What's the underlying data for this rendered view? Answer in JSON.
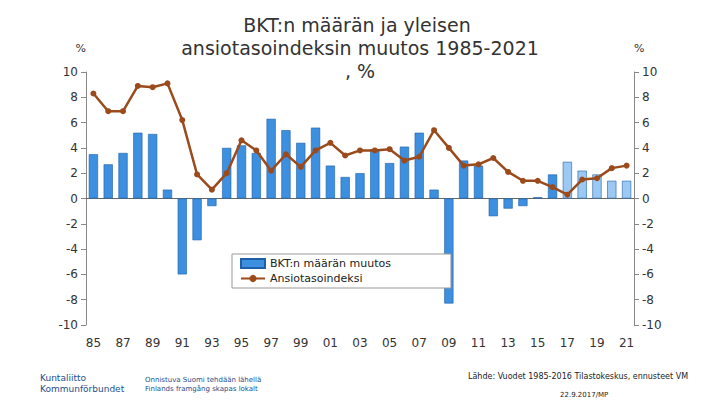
{
  "chart_data": {
    "type": "bar",
    "title": "BKT:n määrän ja yleisen ansiotasoindeksin muutos 1985-2021, %",
    "ylabel": "%",
    "y2label": "%",
    "categories": [
      "85",
      null,
      "87",
      null,
      "89",
      null,
      "91",
      null,
      "93",
      null,
      "95",
      null,
      "97",
      null,
      "99",
      null,
      "01",
      null,
      "03",
      null,
      "05",
      null,
      "07",
      null,
      "09",
      null,
      "11",
      null,
      "13",
      null,
      "15",
      null,
      "17",
      null,
      "19",
      null,
      "21"
    ],
    "series": [
      {
        "name": "BKT:n määrän muutos",
        "type": "bar",
        "colors": [
          "#3d8fe0",
          "#3d8fe0",
          "#3d8fe0",
          "#3d8fe0",
          "#3d8fe0",
          "#3d8fe0",
          "#3d8fe0",
          "#3d8fe0",
          "#3d8fe0",
          "#3d8fe0",
          "#3d8fe0",
          "#3d8fe0",
          "#3d8fe0",
          "#3d8fe0",
          "#3d8fe0",
          "#3d8fe0",
          "#3d8fe0",
          "#3d8fe0",
          "#3d8fe0",
          "#3d8fe0",
          "#3d8fe0",
          "#3d8fe0",
          "#3d8fe0",
          "#3d8fe0",
          "#3d8fe0",
          "#3d8fe0",
          "#3d8fe0",
          "#3d8fe0",
          "#3d8fe0",
          "#3d8fe0",
          "#3d8fe0",
          "#3d8fe0",
          "#9cc9f3",
          "#9cc9f3",
          "#9cc9f3",
          "#9cc9f3",
          "#9cc9f3"
        ],
        "values": [
          3.5,
          2.7,
          3.6,
          5.2,
          5.1,
          0.7,
          -6.0,
          -3.3,
          -0.6,
          4.0,
          4.2,
          3.6,
          6.3,
          5.4,
          4.4,
          5.6,
          2.6,
          1.7,
          2.0,
          3.9,
          2.8,
          4.1,
          5.2,
          0.7,
          -8.3,
          3.0,
          2.6,
          -1.4,
          -0.8,
          -0.6,
          0.1,
          1.9,
          2.9,
          2.2,
          1.9,
          1.4,
          1.4
        ]
      },
      {
        "name": "Ansiotasoindeksi",
        "type": "line",
        "color": "#9b4a1c",
        "marker": "circle",
        "values": [
          8.3,
          6.9,
          6.9,
          8.9,
          8.8,
          9.1,
          6.2,
          1.9,
          0.7,
          2.0,
          4.6,
          3.8,
          2.2,
          3.5,
          2.5,
          3.8,
          4.4,
          3.4,
          3.8,
          3.8,
          3.9,
          3.0,
          3.3,
          5.4,
          4.0,
          2.6,
          2.7,
          3.2,
          2.1,
          1.4,
          1.4,
          0.9,
          0.3,
          1.5,
          1.6,
          2.4,
          2.6
        ]
      }
    ],
    "ylim": [
      -10,
      10
    ],
    "yticks": [
      -10,
      -8,
      -6,
      -4,
      -2,
      0,
      2,
      4,
      6,
      8,
      10
    ],
    "y2lim": [
      -10,
      10
    ],
    "y2ticks": [
      -10,
      -8,
      -6,
      -4,
      -2,
      0,
      2,
      4,
      6,
      8,
      10
    ],
    "grid": false,
    "legend": "bottom",
    "annotations": {
      "logo": [
        "Kuntaliitto",
        "Kommunförbundet"
      ],
      "slogan": [
        "Onnistuva Suomi tehdään lähellä",
        "Finlands framgång skapas lokalt"
      ],
      "source": "Lähde: Vuodet 1985-2016 Tilastokeskus, ennusteet VM",
      "date": "22.9.2017/MP"
    }
  }
}
